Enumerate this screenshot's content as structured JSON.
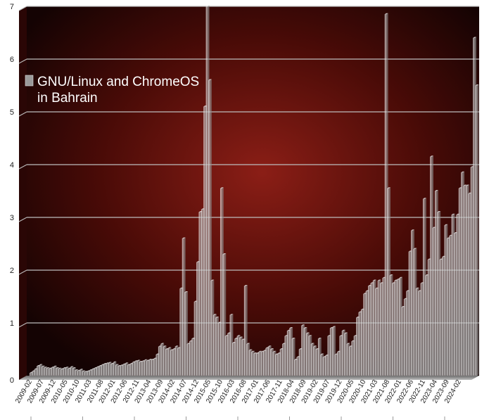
{
  "chart_data": {
    "type": "bar",
    "title": "",
    "xlabel": "",
    "ylabel": "",
    "ylim": [
      0,
      7
    ],
    "yticks": [
      "0",
      "1",
      "2",
      "3",
      "4",
      "5",
      "6",
      "7"
    ],
    "grid": true,
    "legend_position": "top-left",
    "colors": {
      "bar": "#c8c8c8",
      "background_center": "#8b1e16",
      "background_edge": "#140303",
      "grid": "#bdbdbd"
    },
    "x_tick_labels": [
      "2009-02",
      "2009-07",
      "2009-12",
      "2010-05",
      "2010-10",
      "2011-03",
      "2011-08",
      "2012-01",
      "2012-06",
      "2012-11",
      "2013-04",
      "2013-09",
      "2014-02",
      "2014-07",
      "2014-12",
      "2015-05",
      "2015-10",
      "2016-03",
      "2016-08",
      "2017-01",
      "2017-06",
      "2017-11",
      "2018-04",
      "2018-09",
      "2019-02",
      "2019-07",
      "2019-12",
      "2020-05",
      "2020-10",
      "2021-03",
      "2021-08",
      "2022-01",
      "2022-06",
      "2022-11",
      "2023-04",
      "2023-09",
      "2024-02"
    ],
    "series": [
      {
        "name": "GNU/Linux and ChromeOS\nin Bahrain",
        "start": "2009-02",
        "values": [
          0.05,
          0.08,
          0.12,
          0.18,
          0.2,
          0.17,
          0.15,
          0.14,
          0.13,
          0.15,
          0.17,
          0.14,
          0.13,
          0.12,
          0.14,
          0.15,
          0.13,
          0.16,
          0.14,
          0.1,
          0.09,
          0.11,
          0.08,
          0.07,
          0.08,
          0.1,
          0.12,
          0.14,
          0.16,
          0.18,
          0.2,
          0.22,
          0.23,
          0.24,
          0.22,
          0.25,
          0.2,
          0.18,
          0.19,
          0.21,
          0.23,
          0.2,
          0.22,
          0.25,
          0.27,
          0.28,
          0.26,
          0.27,
          0.29,
          0.28,
          0.3,
          0.3,
          0.32,
          0.4,
          0.55,
          0.6,
          0.55,
          0.5,
          0.52,
          0.48,
          0.5,
          0.55,
          0.52,
          1.65,
          2.6,
          1.58,
          0.6,
          0.65,
          0.7,
          1.4,
          2.15,
          3.1,
          3.15,
          5.1,
          7.0,
          5.6,
          1.8,
          1.15,
          1.1,
          1.0,
          3.55,
          2.3,
          0.75,
          0.8,
          1.15,
          0.62,
          0.7,
          0.75,
          0.72,
          0.68,
          1.7,
          0.6,
          0.48,
          0.45,
          0.42,
          0.42,
          0.45,
          0.45,
          0.47,
          0.52,
          0.55,
          0.5,
          0.45,
          0.4,
          0.42,
          0.5,
          0.6,
          0.75,
          0.85,
          0.9,
          0.7,
          0.3,
          0.35,
          0.5,
          0.95,
          0.9,
          0.8,
          0.75,
          0.6,
          0.55,
          0.5,
          0.7,
          0.4,
          0.35,
          0.38,
          0.75,
          0.9,
          0.92,
          0.4,
          0.45,
          0.75,
          0.85,
          0.8,
          0.6,
          0.55,
          0.65,
          0.75,
          1.1,
          1.2,
          1.25,
          1.55,
          1.6,
          1.7,
          1.75,
          1.8,
          1.65,
          1.8,
          1.75,
          1.85,
          6.85,
          3.55,
          1.9,
          1.75,
          1.8,
          1.82,
          1.85,
          1.3,
          1.45,
          1.6,
          2.35,
          2.75,
          2.4,
          1.65,
          1.6,
          1.75,
          3.35,
          1.9,
          2.2,
          4.15,
          2.8,
          3.5,
          3.1,
          2.2,
          2.25,
          2.85,
          2.6,
          2.65,
          3.05,
          2.7,
          3.05,
          3.55,
          3.85,
          3.6,
          3.6,
          3.45,
          3.95,
          6.4,
          5.5
        ]
      }
    ]
  }
}
